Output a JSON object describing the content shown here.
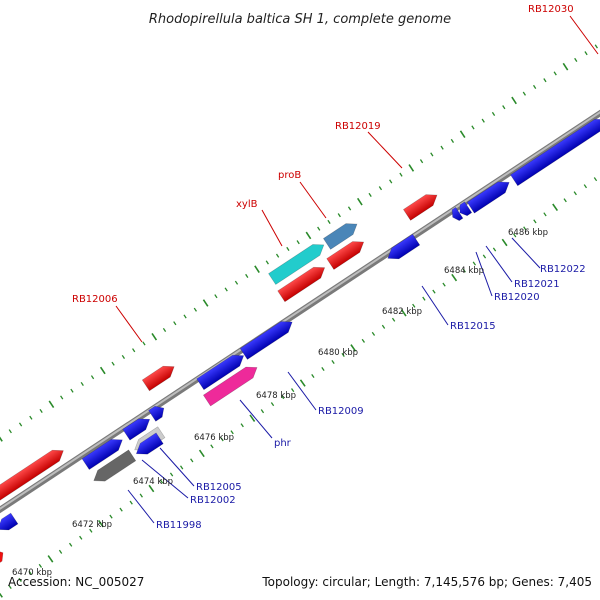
{
  "header": {
    "title": "Rhodopirellula baltica SH 1, complete genome"
  },
  "footer": {
    "accession": "Accession: NC_005027",
    "summary": "Topology: circular; Length: 7,145,576 bp; Genes: 7,405"
  },
  "ticks": [
    "6470 kbp",
    "6472 kbp",
    "6474 kbp",
    "6476 kbp",
    "6478 kbp",
    "6480 kbp",
    "6482 kbp",
    "6484 kbp",
    "6486 kbp"
  ],
  "labels": {
    "top": [
      "RB12006",
      "xylB",
      "proB",
      "RB12019",
      "RB12030"
    ],
    "bottom": [
      "RB11998",
      "RB12002",
      "RB12005",
      "phr",
      "RB12009",
      "RB12015",
      "RB12020",
      "RB12021",
      "RB12022"
    ]
  },
  "colors": {
    "forward_gene": "#ee1111",
    "reverse_gene": "#1111dd",
    "backbone": "#888888",
    "tick": "#2a8a2a",
    "highlight_cyan": "#22cccc",
    "highlight_steel": "#4a86b8",
    "highlight_pink": "#ee2a9a",
    "highlight_gray": "#666666",
    "highlight_light": "#cccccc"
  }
}
